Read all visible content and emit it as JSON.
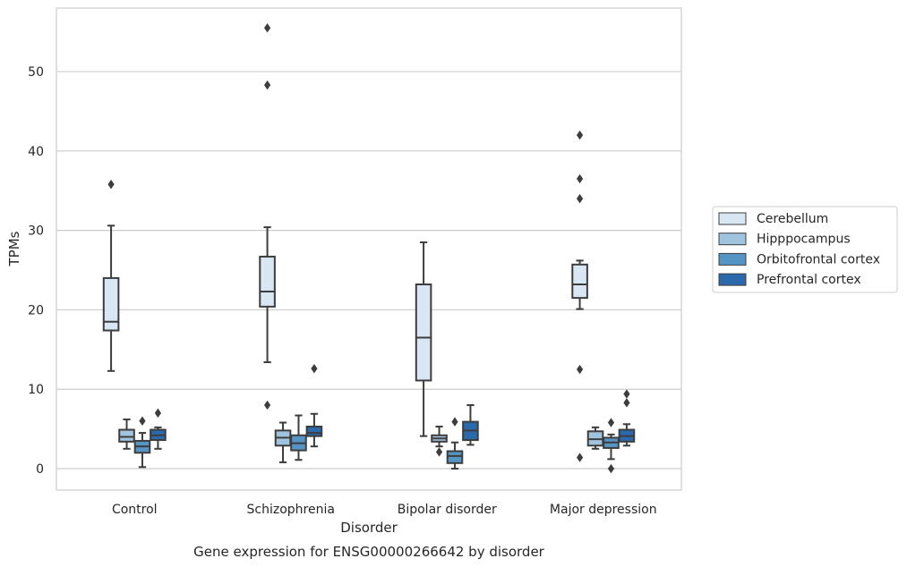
{
  "chart_data": {
    "type": "box",
    "caption": "Gene expression for ENSG00000266642 by disorder",
    "xlabel": "Disorder",
    "ylabel": "TPMs",
    "ylim": [
      -2.7,
      58
    ],
    "yticks": [
      0,
      10,
      20,
      30,
      40,
      50
    ],
    "grid": true,
    "legend_position": "right",
    "categories": [
      "Control",
      "Schizophrenia",
      "Bipolar disorder",
      "Major depression"
    ],
    "series": [
      {
        "name": "Cerebellum",
        "color": "#d9e6f3",
        "boxes": [
          {
            "category": "Control",
            "q1": 17.4,
            "median": 18.5,
            "q3": 24.0,
            "whisker_low": 12.3,
            "whisker_high": 30.6,
            "outliers": [
              35.8
            ]
          },
          {
            "category": "Schizophrenia",
            "q1": 20.4,
            "median": 22.3,
            "q3": 26.7,
            "whisker_low": 13.4,
            "whisker_high": 30.4,
            "outliers": [
              55.5,
              48.3,
              8.0
            ]
          },
          {
            "category": "Bipolar disorder",
            "q1": 11.1,
            "median": 16.5,
            "q3": 23.2,
            "whisker_low": 4.1,
            "whisker_high": 28.5,
            "outliers": []
          },
          {
            "category": "Major depression",
            "q1": 21.5,
            "median": 23.2,
            "q3": 25.7,
            "whisker_low": 20.1,
            "whisker_high": 26.2,
            "outliers": [
              42.0,
              36.5,
              34.0,
              12.5,
              1.4
            ]
          }
        ]
      },
      {
        "name": "Hipppocampus",
        "color": "#a1c4de",
        "boxes": [
          {
            "category": "Control",
            "q1": 3.4,
            "median": 4.0,
            "q3": 4.9,
            "whisker_low": 2.5,
            "whisker_high": 6.2,
            "outliers": []
          },
          {
            "category": "Schizophrenia",
            "q1": 2.9,
            "median": 3.9,
            "q3": 4.8,
            "whisker_low": 0.8,
            "whisker_high": 5.8,
            "outliers": []
          },
          {
            "category": "Bipolar disorder",
            "q1": 3.4,
            "median": 3.8,
            "q3": 4.2,
            "whisker_low": 2.8,
            "whisker_high": 5.3,
            "outliers": [
              2.1
            ]
          },
          {
            "category": "Major depression",
            "q1": 2.9,
            "median": 3.7,
            "q3": 4.7,
            "whisker_low": 2.5,
            "whisker_high": 5.2,
            "outliers": []
          }
        ]
      },
      {
        "name": "Orbitofrontal cortex",
        "color": "#5595c6",
        "boxes": [
          {
            "category": "Control",
            "q1": 2.0,
            "median": 2.8,
            "q3": 3.5,
            "whisker_low": 0.2,
            "whisker_high": 4.5,
            "outliers": [
              6.0
            ]
          },
          {
            "category": "Schizophrenia",
            "q1": 2.3,
            "median": 3.2,
            "q3": 4.2,
            "whisker_low": 1.1,
            "whisker_high": 6.7,
            "outliers": []
          },
          {
            "category": "Bipolar disorder",
            "q1": 0.7,
            "median": 1.6,
            "q3": 2.2,
            "whisker_low": 0.0,
            "whisker_high": 3.3,
            "outliers": [
              5.9
            ]
          },
          {
            "category": "Major depression",
            "q1": 2.6,
            "median": 3.3,
            "q3": 3.9,
            "whisker_low": 1.2,
            "whisker_high": 4.3,
            "outliers": [
              5.8,
              0.0
            ]
          }
        ]
      },
      {
        "name": "Prefrontal cortex",
        "color": "#2a69ab",
        "boxes": [
          {
            "category": "Control",
            "q1": 3.6,
            "median": 4.2,
            "q3": 4.9,
            "whisker_low": 2.5,
            "whisker_high": 5.2,
            "outliers": [
              7.0
            ]
          },
          {
            "category": "Schizophrenia",
            "q1": 4.1,
            "median": 4.5,
            "q3": 5.3,
            "whisker_low": 2.8,
            "whisker_high": 6.9,
            "outliers": [
              12.6
            ]
          },
          {
            "category": "Bipolar disorder",
            "q1": 3.6,
            "median": 4.8,
            "q3": 5.9,
            "whisker_low": 3.0,
            "whisker_high": 8.0,
            "outliers": []
          },
          {
            "category": "Major depression",
            "q1": 3.4,
            "median": 4.1,
            "q3": 4.9,
            "whisker_low": 2.9,
            "whisker_high": 5.6,
            "outliers": [
              9.4,
              8.3
            ]
          }
        ]
      }
    ]
  }
}
